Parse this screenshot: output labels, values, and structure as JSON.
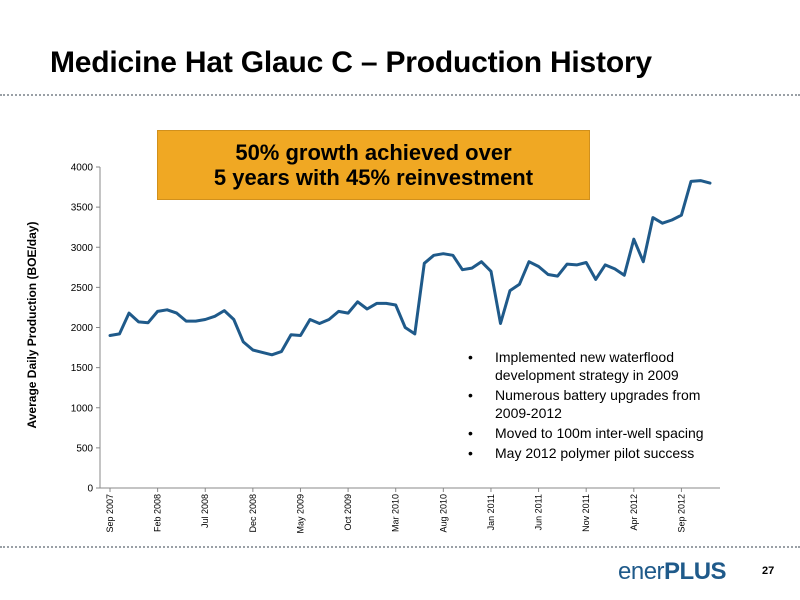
{
  "slide": {
    "title": "Medicine Hat Glauc C – Production History",
    "callout_line1": "50% growth achieved over",
    "callout_line2": "5 years with 45% reinvestment",
    "bullets": [
      "Implemented new waterflood development strategy in 2009",
      "Numerous battery upgrades from 2009-2012",
      "Moved to 100m inter-well spacing",
      "May 2012 polymer pilot success"
    ],
    "logo_text_1": "ener",
    "logo_text_2": "PLUS",
    "page_number": "27",
    "colors": {
      "line": "#1f5a8a",
      "callout": "#f0a823",
      "logo": "#1f5a8a"
    }
  },
  "chart_data": {
    "type": "line",
    "title": "",
    "xlabel": "",
    "ylabel": "Average Daily Production (BOE/day)",
    "ylim": [
      0,
      4000
    ],
    "yticks": [
      0,
      500,
      1000,
      1500,
      2000,
      2500,
      3000,
      3500,
      4000
    ],
    "x_tick_labels": [
      "Sep 2007",
      "Feb 2008",
      "Jul 2008",
      "Dec 2008",
      "May 2009",
      "Oct 2009",
      "Mar 2010",
      "Aug 2010",
      "Jan 2011",
      "Jun 2011",
      "Nov 2011",
      "Apr 2012",
      "Sep 2012"
    ],
    "grid": false,
    "legend": "none",
    "series": [
      {
        "x": [
          "Sep 2007",
          "Oct 2007",
          "Nov 2007",
          "Dec 2007",
          "Jan 2008",
          "Feb 2008",
          "Mar 2008",
          "Apr 2008",
          "May 2008",
          "Jun 2008",
          "Jul 2008",
          "Aug 2008",
          "Sep 2008",
          "Oct 2008",
          "Nov 2008",
          "Dec 2008",
          "Jan 2009",
          "Feb 2009",
          "Mar 2009",
          "Apr 2009",
          "May 2009",
          "Jun 2009",
          "Jul 2009",
          "Aug 2009",
          "Sep 2009",
          "Oct 2009",
          "Nov 2009",
          "Dec 2009",
          "Jan 2010",
          "Feb 2010",
          "Mar 2010",
          "Apr 2010",
          "May 2010",
          "Jun 2010",
          "Jul 2010",
          "Aug 2010",
          "Sep 2010",
          "Oct 2010",
          "Nov 2010",
          "Dec 2010",
          "Jan 2011",
          "Feb 2011",
          "Mar 2011",
          "Apr 2011",
          "May 2011",
          "Jun 2011",
          "Jul 2011",
          "Aug 2011",
          "Sep 2011",
          "Oct 2011",
          "Nov 2011",
          "Dec 2011",
          "Jan 2012",
          "Feb 2012",
          "Mar 2012",
          "Apr 2012",
          "May 2012",
          "Jun 2012",
          "Jul 2012",
          "Aug 2012",
          "Sep 2012",
          "Oct 2012",
          "Nov 2012",
          "Dec 2012"
        ],
        "values": [
          1900,
          1920,
          2180,
          2070,
          2060,
          2200,
          2220,
          2180,
          2080,
          2080,
          2100,
          2140,
          2210,
          2100,
          1820,
          1720,
          1690,
          1660,
          1700,
          1910,
          1900,
          2100,
          2050,
          2100,
          2200,
          2180,
          2320,
          2230,
          2300,
          2300,
          2280,
          2000,
          1920,
          2800,
          2900,
          2920,
          2900,
          2720,
          2740,
          2820,
          2700,
          2050,
          2460,
          2540,
          2820,
          2760,
          2660,
          2640,
          2790,
          2780,
          2810,
          2600,
          2780,
          2730,
          2650,
          3100,
          2820,
          3370,
          3300,
          3340,
          3400,
          3820,
          3830,
          3800
        ]
      }
    ]
  }
}
